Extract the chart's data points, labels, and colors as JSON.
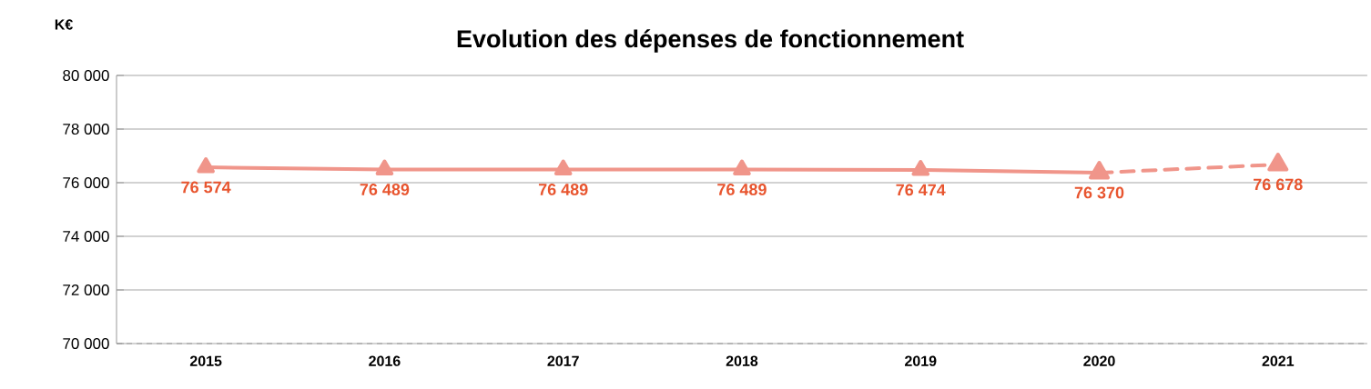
{
  "chart_data": {
    "type": "line",
    "title": "Evolution des dépenses de fonctionnement",
    "ylabel": "K€",
    "categories": [
      "2015",
      "2016",
      "2017",
      "2018",
      "2019",
      "2020",
      "2021"
    ],
    "series": [
      {
        "color": "#f0958a",
        "line_style": "solid",
        "marker": "triangle",
        "values": [
          76574,
          76489,
          76489,
          76489,
          76474,
          76370,
          null
        ],
        "value_labels": [
          "76 574",
          "76 489",
          "76 489",
          "76 489",
          "76 474",
          "76 370",
          null
        ]
      },
      {
        "color": "#f0958a",
        "line_style": "dashed",
        "marker": "triangle",
        "values": [
          null,
          null,
          null,
          null,
          null,
          76370,
          76678
        ],
        "value_labels": [
          null,
          null,
          null,
          null,
          null,
          null,
          "76 678"
        ]
      }
    ],
    "ylim": [
      70000,
      80000
    ],
    "yticks": [
      {
        "value": 70000,
        "label": "70 000"
      },
      {
        "value": 72000,
        "label": "72 000"
      },
      {
        "value": 74000,
        "label": "74 000"
      },
      {
        "value": 76000,
        "label": "76 000"
      },
      {
        "value": 78000,
        "label": "78 000"
      },
      {
        "value": 80000,
        "label": "80 000"
      }
    ],
    "grid": "y"
  }
}
